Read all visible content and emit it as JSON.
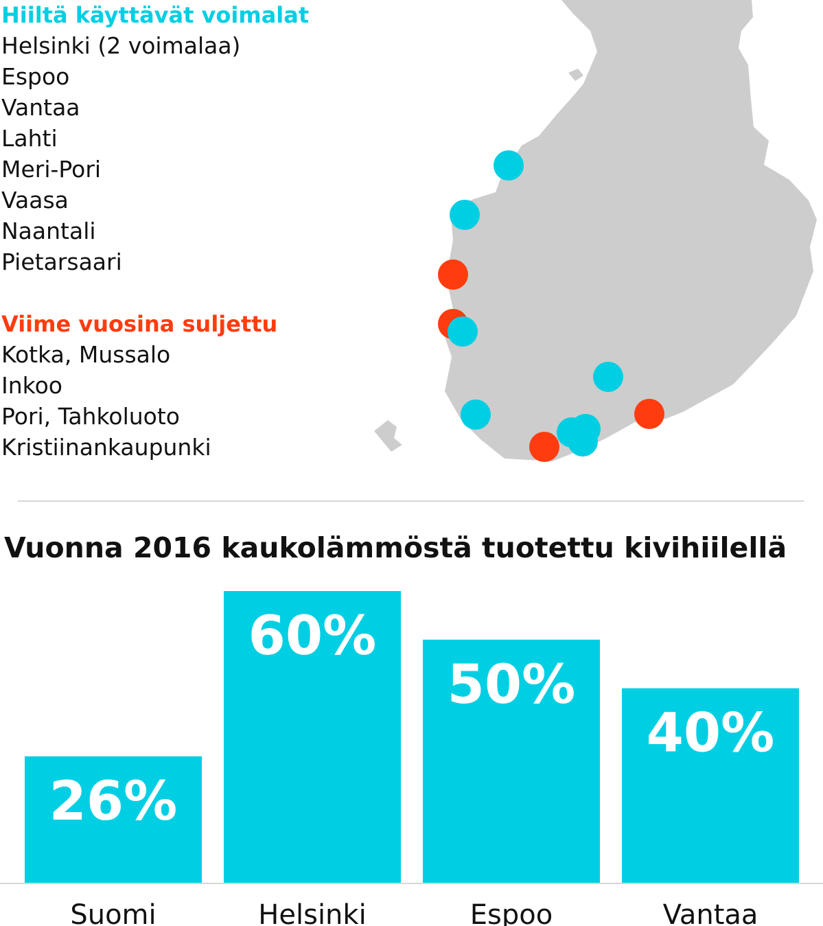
{
  "legend": {
    "open_title": "Hiiltä käyttävät voimalat",
    "open_plants": [
      "Helsinki (2 voimalaa)",
      "Espoo",
      "Vantaa",
      "Lahti",
      "Meri-Pori",
      "Vaasa",
      "Naantali",
      "Pietarsaari"
    ],
    "closed_title": "Viime vuosina suljettu",
    "closed_plants": [
      "Kotka, Mussalo",
      "Inkoo",
      "Pori, Tahkoluoto",
      "Kristiinankaupunki"
    ]
  },
  "colors": {
    "open": "#00cfe3",
    "closed": "#ff3c0f",
    "land": "#cdcdcd",
    "bar": "#00cfe3",
    "text": "#111111"
  },
  "map": {
    "land_name": "Finland-map"
  },
  "chart_data": {
    "type": "bar",
    "title": "Vuonna 2016 kaukolämmöstä tuotettu kivihiilellä",
    "categories": [
      "Suomi",
      "Helsinki",
      "Espoo",
      "Vantaa"
    ],
    "values": [
      26,
      60,
      50,
      40
    ],
    "value_labels": [
      "26%",
      "60%",
      "50%",
      "40%"
    ],
    "unit": "%",
    "ylim": [
      0,
      60
    ],
    "xlabel": "",
    "ylabel": "",
    "grid": false
  }
}
